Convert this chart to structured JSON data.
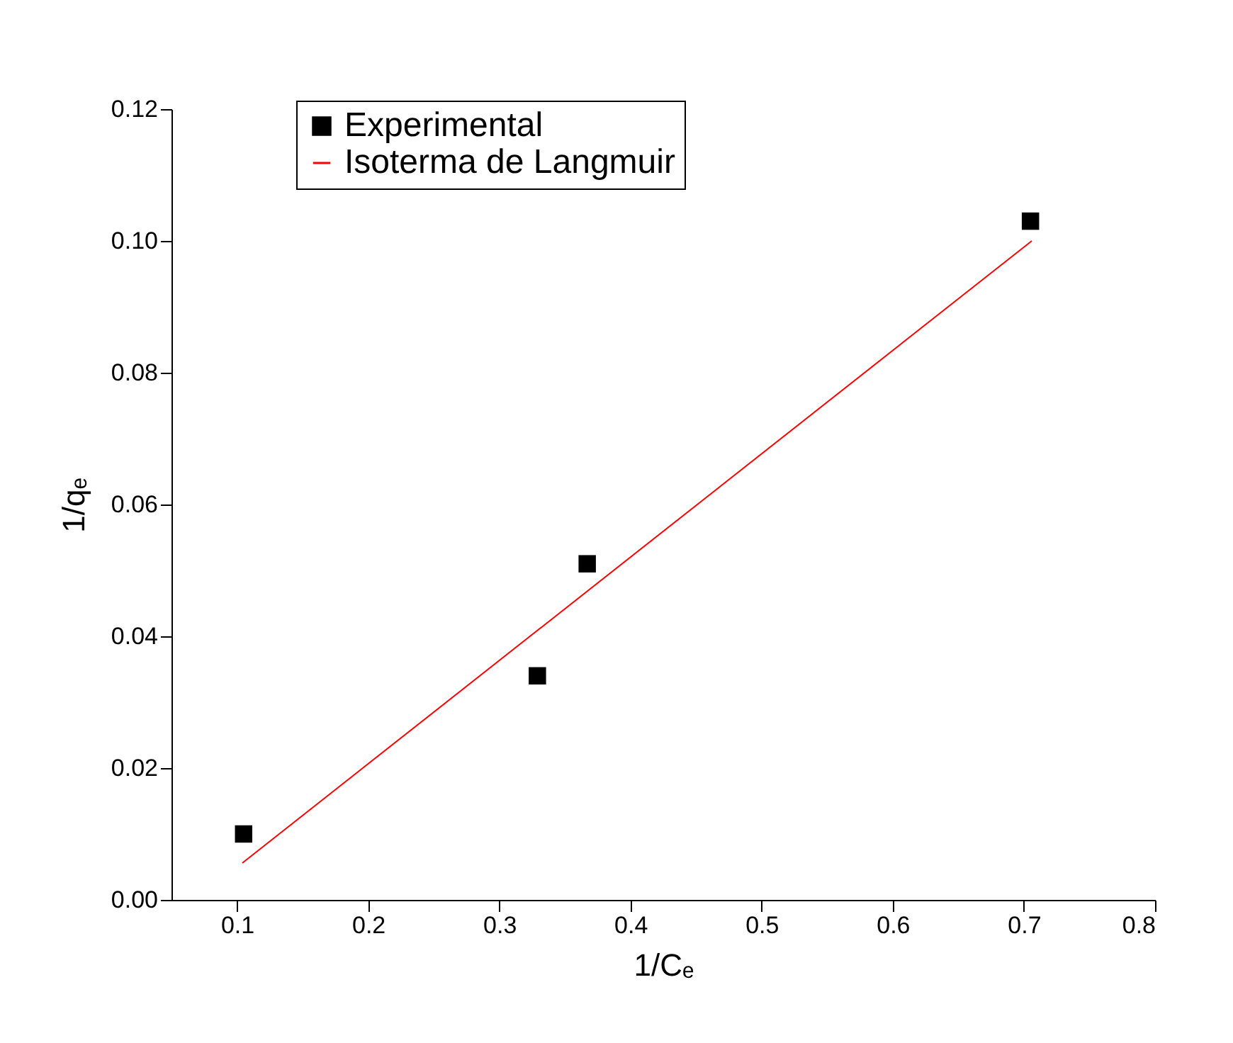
{
  "chart_data": {
    "type": "scatter",
    "xlabel": "1/Cₑ",
    "ylabel": "1/qₑ",
    "xlim": [
      0.05,
      0.8
    ],
    "xticks": [
      0.1,
      0.2,
      0.3,
      0.4,
      0.5,
      0.6,
      0.7,
      0.8
    ],
    "ylim": [
      0,
      0.12
    ],
    "yticks": [
      {
        "value": 0,
        "label": "0.00"
      },
      {
        "value": 0.02,
        "label": "0.02"
      },
      {
        "value": 0.04,
        "label": "0.04"
      },
      {
        "value": 0.06,
        "label": "0.06"
      },
      {
        "value": 0.08,
        "label": "0.08"
      },
      {
        "value": 0.1,
        "label": "0.10"
      },
      {
        "value": 0.12,
        "label": "0.12"
      }
    ],
    "grid": false,
    "legend": "top left",
    "line_style": "solid",
    "series": [
      {
        "name": "Experimental",
        "marker": "square",
        "color": "#000000",
        "x": [
          0.105,
          0.329,
          0.367,
          0.705
        ],
        "values": [
          0.01,
          0.034,
          0.051,
          0.103
        ]
      },
      {
        "name": "Isoterma de Langmuir",
        "type": "line",
        "marker": "none",
        "color": "#ff0000",
        "x": [
          0.104,
          0.706
        ],
        "values": [
          0.0056,
          0.1
        ]
      }
    ]
  }
}
